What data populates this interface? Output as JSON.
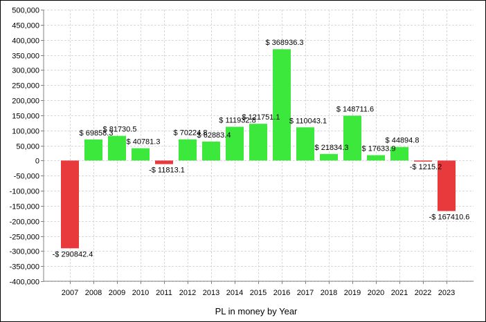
{
  "chart_data": {
    "type": "bar",
    "title": "",
    "xlabel": "PL in money by Year",
    "ylabel": "",
    "ylim": [
      -400000,
      500000
    ],
    "yticks": [
      500000,
      450000,
      400000,
      350000,
      300000,
      250000,
      200000,
      150000,
      100000,
      50000,
      0,
      -50000,
      -100000,
      -150000,
      -200000,
      -250000,
      -300000,
      -350000,
      -400000
    ],
    "ytick_labels": [
      "500,000",
      "450,000",
      "400,000",
      "350,000",
      "300,000",
      "250,000",
      "200,000",
      "150,000",
      "100,000",
      "50,000",
      "0",
      "-50,000",
      "-100,000",
      "-150,000",
      "-200,000",
      "-250,000",
      "-300,000",
      "-350,000",
      "-400,000"
    ],
    "grid": true,
    "categories": [
      "2007",
      "2008",
      "2009",
      "2010",
      "2011",
      "2012",
      "2013",
      "2014",
      "2015",
      "2016",
      "2017",
      "2018",
      "2019",
      "2020",
      "2021",
      "2022",
      "2023"
    ],
    "values": [
      -290842.4,
      69858.3,
      81730.5,
      40781.3,
      -11813.1,
      70224.8,
      62883.4,
      111932.8,
      121751.1,
      368936.3,
      110043.1,
      21834.3,
      148711.6,
      17633.9,
      44894.8,
      -1215.2,
      -167410.6
    ],
    "data_labels": [
      "-$ 290842.4",
      "$ 69858.3",
      "$ 81730.5",
      "$ 40781.3",
      "-$ 11813.1",
      "$ 70224.8",
      "$ 62883.4",
      "$ 111932.8",
      "$ 121751.1",
      "$ 368936.3",
      "$ 110043.1",
      "$ 21834.3",
      "$ 148711.6",
      "$ 17633.9",
      "$ 44894.8",
      "-$ 1215.2",
      "-$ 167410.6"
    ],
    "colors": {
      "positive": "#3de83d",
      "negative": "#e8393d",
      "grid": "#d9d9d9",
      "axis": "#808080"
    }
  }
}
